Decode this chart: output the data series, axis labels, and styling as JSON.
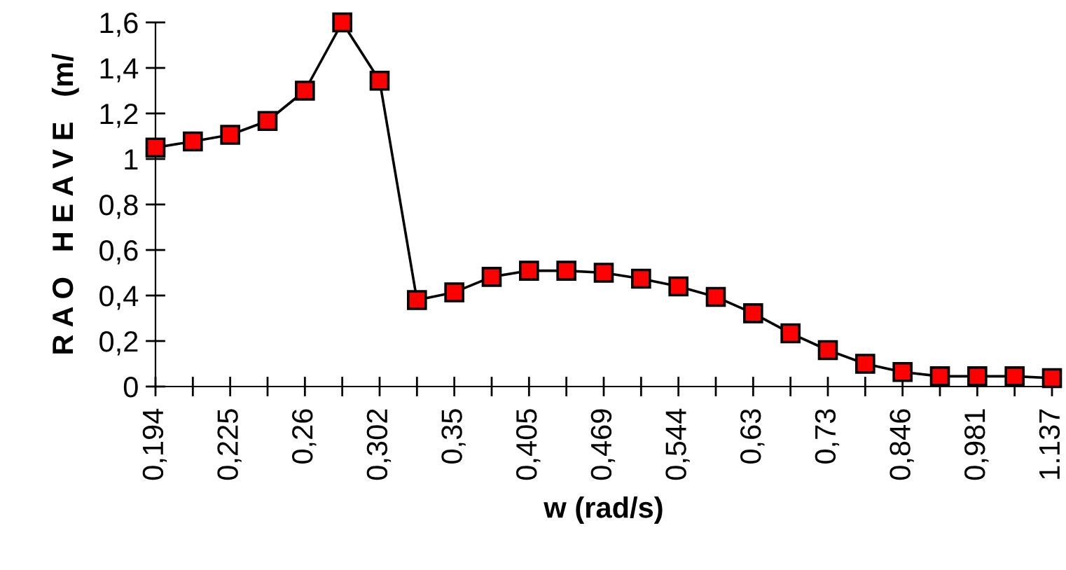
{
  "chart_data": {
    "type": "line",
    "xlabel": "w (rad/s)",
    "ylabel": "R A O   H E A V E   (m/",
    "categories": [
      "0,194",
      null,
      "0,225",
      null,
      "0,26",
      null,
      "0,302",
      null,
      "0,35",
      null,
      "0,405",
      null,
      "0,469",
      null,
      "0,544",
      null,
      "0,63",
      null,
      "0,73",
      null,
      "0,846",
      null,
      "0,981",
      null,
      "1.137"
    ],
    "series": [
      {
        "color": "#ff0000",
        "values": [
          1.05,
          1.077,
          1.106,
          1.167,
          1.3,
          1.6,
          1.344,
          0.38,
          0.414,
          0.482,
          0.509,
          0.509,
          0.5,
          0.474,
          0.44,
          0.394,
          0.322,
          0.234,
          0.16,
          0.1,
          0.064,
          0.045,
          0.045,
          0.045,
          0.037
        ]
      }
    ],
    "ylim": [
      0,
      1.6
    ],
    "yticks": [
      0,
      {
        "value": 0.2,
        "label": "0,2"
      },
      {
        "value": 0.4,
        "label": "0,4"
      },
      {
        "value": 0.6,
        "label": "0,6"
      },
      {
        "value": 0.8,
        "label": "0,8"
      },
      1,
      {
        "value": 1.2,
        "label": "1,2"
      },
      {
        "value": 1.4,
        "label": "1,4"
      },
      {
        "value": 1.6,
        "label": "1,6"
      }
    ],
    "grid": false,
    "legend": false,
    "marker": "square",
    "line_style": "solid"
  }
}
